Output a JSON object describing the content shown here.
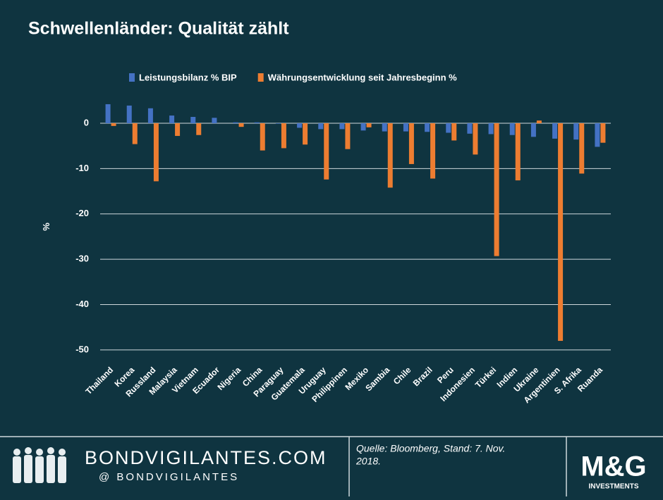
{
  "chart_data": {
    "type": "bar",
    "title": "Schwellenländer: Qualität zählt",
    "ylabel": "%",
    "categories": [
      "Thailand",
      "Korea",
      "Russland",
      "Malaysia",
      "Vietnam",
      "Ecuador",
      "Nigeria",
      "China",
      "Paraguay",
      "Guatemala",
      "Uruguay",
      "Philippinen",
      "Mexiko",
      "Sambia",
      "Chile",
      "Brazil",
      "Peru",
      "Indonesien",
      "Türkei",
      "Indien",
      "Ukraine",
      "Argentinien",
      "S. Afrika",
      "Ruanda"
    ],
    "series": [
      {
        "name": "Leistungsbilanz % BIP",
        "color": "#4472c4",
        "values": [
          4.2,
          3.9,
          3.3,
          1.7,
          1.4,
          1.2,
          0.2,
          0.2,
          -0.1,
          -1.0,
          -1.3,
          -1.3,
          -1.6,
          -1.8,
          -1.8,
          -1.9,
          -2.1,
          -2.3,
          -2.4,
          -2.6,
          -3.0,
          -3.4,
          -3.6,
          -5.2
        ]
      },
      {
        "name": "Währungsentwicklung seit Jahresbeginn %",
        "color": "#ed7d31",
        "values": [
          -0.6,
          -4.6,
          -12.8,
          -2.8,
          -2.6,
          0,
          -0.8,
          -6.0,
          -5.5,
          -4.7,
          -12.4,
          -5.7,
          -0.9,
          -14.2,
          -9.0,
          -12.2,
          -3.8,
          -6.9,
          -29.3,
          -12.6,
          0.6,
          -48,
          -11.1,
          -4.3
        ]
      }
    ],
    "ylim": [
      -52.5,
      5.5
    ],
    "yticks": [
      0,
      -10,
      -20,
      -30,
      -40,
      -50
    ],
    "grid": true,
    "legend": "top"
  },
  "footer": {
    "site": "BONDVIGILANTES.COM",
    "handle": "@ BONDVIGILANTES",
    "source": [
      "Quelle: Bloomberg, Stand: 7. Nov.",
      "2018."
    ],
    "logo": "M&G",
    "logo_sub": "INVESTMENTS"
  }
}
